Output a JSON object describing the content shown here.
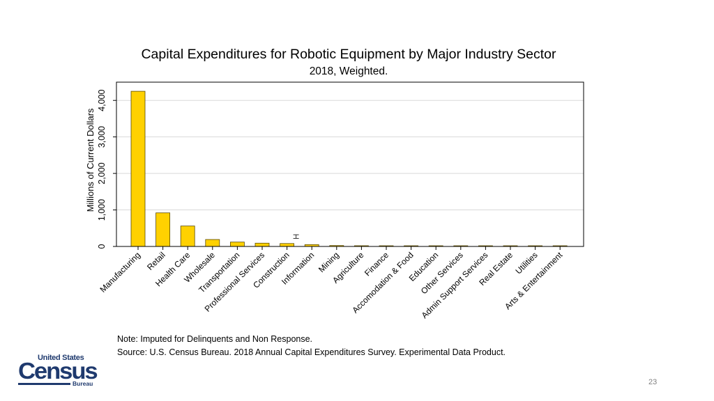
{
  "chart_data": {
    "type": "bar",
    "title": "Capital Expenditures for Robotic Equipment by Major Industry Sector",
    "subtitle": "2018, Weighted.",
    "xlabel": "",
    "ylabel": "Millions of Current Dollars",
    "ylim": [
      0,
      4500
    ],
    "yticks": [
      0,
      1000,
      2000,
      3000,
      4000
    ],
    "ytick_labels": [
      "0",
      "1,000",
      "2,000",
      "3,000",
      "4,000"
    ],
    "grid": true,
    "categories": [
      "Manufacturing",
      "Retail",
      "Health Care",
      "Wholesale",
      "Transportation",
      "Professional Services",
      "Construction",
      "Information",
      "Mining",
      "Agriculture",
      "Finance",
      "Accomodation & Food",
      "Education",
      "Other Services",
      "Admin Support Services",
      "Real Estate",
      "Utilities",
      "Arts & Entertainment"
    ],
    "values": [
      4250,
      920,
      560,
      190,
      120,
      90,
      80,
      50,
      25,
      20,
      18,
      12,
      10,
      8,
      7,
      5,
      4,
      3
    ],
    "error_bar": {
      "category": "Construction",
      "low": 220,
      "high": 320
    },
    "colors": {
      "bar": "#FFD100",
      "bar_edge": "#5a4a00",
      "grid": "#d9d9d9",
      "axis": "#000000"
    }
  },
  "notes": {
    "note": "Note: Imputed for Delinquents and Non Response.",
    "source": "Source: U.S. Census Bureau. 2018 Annual Capital Expenditures Survey. Experimental Data Product."
  },
  "logo": {
    "line1": "United States",
    "line2": "Census",
    "line3": "Bureau"
  },
  "page_number": "23"
}
